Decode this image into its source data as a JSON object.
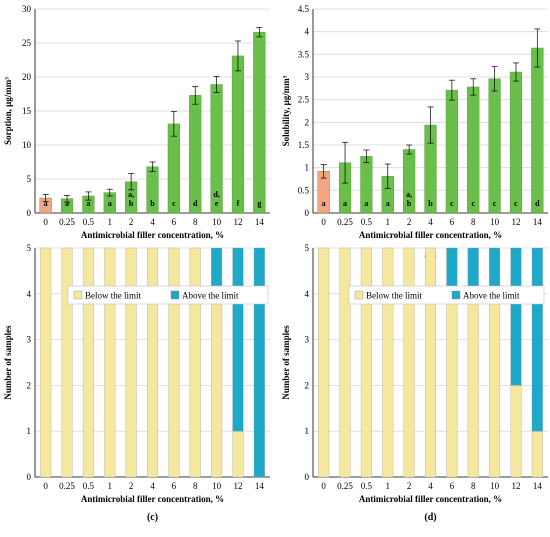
{
  "chart_data": [
    {
      "panel": "(a)",
      "type": "bar",
      "categories": [
        "0",
        "0.25",
        "0.5",
        "1",
        "2",
        "4",
        "6",
        "8",
        "10",
        "12",
        "14"
      ],
      "values": [
        2.2,
        2.1,
        2.5,
        3.0,
        4.6,
        6.8,
        13.1,
        17.3,
        18.9,
        23.1,
        26.6
      ],
      "errors": [
        0.5,
        0.5,
        0.6,
        0.5,
        1.2,
        0.7,
        1.8,
        1.3,
        1.2,
        2.2,
        0.7
      ],
      "letters": [
        [
          "a"
        ],
        [
          "a"
        ],
        [
          "a"
        ],
        [
          "a"
        ],
        [
          "a,",
          "b"
        ],
        [
          "b"
        ],
        [
          "c"
        ],
        [
          "d"
        ],
        [
          "d,",
          "e"
        ],
        [
          "f"
        ],
        [
          "g"
        ]
      ],
      "bar_colors": [
        "#f4a582",
        "#6abf4b",
        "#6abf4b",
        "#6abf4b",
        "#6abf4b",
        "#6abf4b",
        "#6abf4b",
        "#6abf4b",
        "#6abf4b",
        "#6abf4b",
        "#6abf4b"
      ],
      "xlabel": "Antimicrobial filler concentration, %",
      "ylabel": "Sorption, μg/mm³",
      "ylim": [
        0,
        30
      ],
      "yticks": [
        "0",
        "5",
        "10",
        "15",
        "20",
        "25",
        "30"
      ],
      "grid": true
    },
    {
      "panel": "(b)",
      "type": "bar",
      "categories": [
        "0",
        "0.25",
        "0.5",
        "1",
        "2",
        "4",
        "6",
        "8",
        "10",
        "12",
        "14"
      ],
      "values": [
        0.92,
        1.11,
        1.25,
        0.81,
        1.4,
        1.94,
        2.71,
        2.78,
        2.96,
        3.11,
        3.64
      ],
      "errors": [
        0.15,
        0.45,
        0.14,
        0.27,
        0.1,
        0.4,
        0.22,
        0.18,
        0.27,
        0.2,
        0.42
      ],
      "letters": [
        [
          "a"
        ],
        [
          "a"
        ],
        [
          "a"
        ],
        [
          "a"
        ],
        [
          "a,",
          "b"
        ],
        [
          "b"
        ],
        [
          "c"
        ],
        [
          "c"
        ],
        [
          "c"
        ],
        [
          "c"
        ],
        [
          "d"
        ]
      ],
      "bar_colors": [
        "#f4a582",
        "#6abf4b",
        "#6abf4b",
        "#6abf4b",
        "#6abf4b",
        "#6abf4b",
        "#6abf4b",
        "#6abf4b",
        "#6abf4b",
        "#6abf4b",
        "#6abf4b"
      ],
      "xlabel": "Antimicrobial filler concentration, %",
      "ylabel": "Solubility, μg/mm³",
      "ylim": [
        0,
        4.5
      ],
      "yticks": [
        "0",
        "0.5",
        "1",
        "1.5",
        "2",
        "2.5",
        "3",
        "3.5",
        "4",
        "4.5"
      ],
      "grid": true
    },
    {
      "panel": "(c)",
      "type": "bar",
      "stacked": true,
      "categories": [
        "0",
        "0.25",
        "0.5",
        "1",
        "2",
        "4",
        "6",
        "8",
        "10",
        "12",
        "14"
      ],
      "series": [
        {
          "name": "Below the limit",
          "color": "#f5e79e",
          "values": [
            5,
            5,
            5,
            5,
            5,
            5,
            5,
            5,
            4,
            1,
            0
          ]
        },
        {
          "name": "Above the limit",
          "color": "#1fa9c9",
          "values": [
            0,
            0,
            0,
            0,
            0,
            0,
            0,
            0,
            1,
            4,
            5
          ]
        }
      ],
      "xlabel": "Antimicrobial filler concentration, %",
      "ylabel": "Number of samples",
      "ylim": [
        0,
        5
      ],
      "yticks": [
        "0",
        "1",
        "2",
        "3",
        "4",
        "5"
      ],
      "legend": "top-right",
      "grid": true
    },
    {
      "panel": "(d)",
      "type": "bar",
      "stacked": true,
      "categories": [
        "0",
        "0.25",
        "0.5",
        "1",
        "2",
        "4",
        "6",
        "8",
        "10",
        "12",
        "14"
      ],
      "series": [
        {
          "name": "Below the limit",
          "color": "#f5e79e",
          "values": [
            5,
            5,
            5,
            5,
            5,
            5,
            4,
            4,
            4,
            2,
            1
          ]
        },
        {
          "name": "Above the limit",
          "color": "#1fa9c9",
          "values": [
            0,
            0,
            0,
            0,
            0,
            0,
            1,
            1,
            1,
            3,
            4
          ]
        }
      ],
      "xlabel": "Antimicrobial filler concentration, %",
      "ylabel": "Number of samples",
      "ylim": [
        0,
        5
      ],
      "yticks": [
        "0",
        "1",
        "2",
        "3",
        "4",
        "5"
      ],
      "legend": "top-right",
      "grid": true
    }
  ]
}
